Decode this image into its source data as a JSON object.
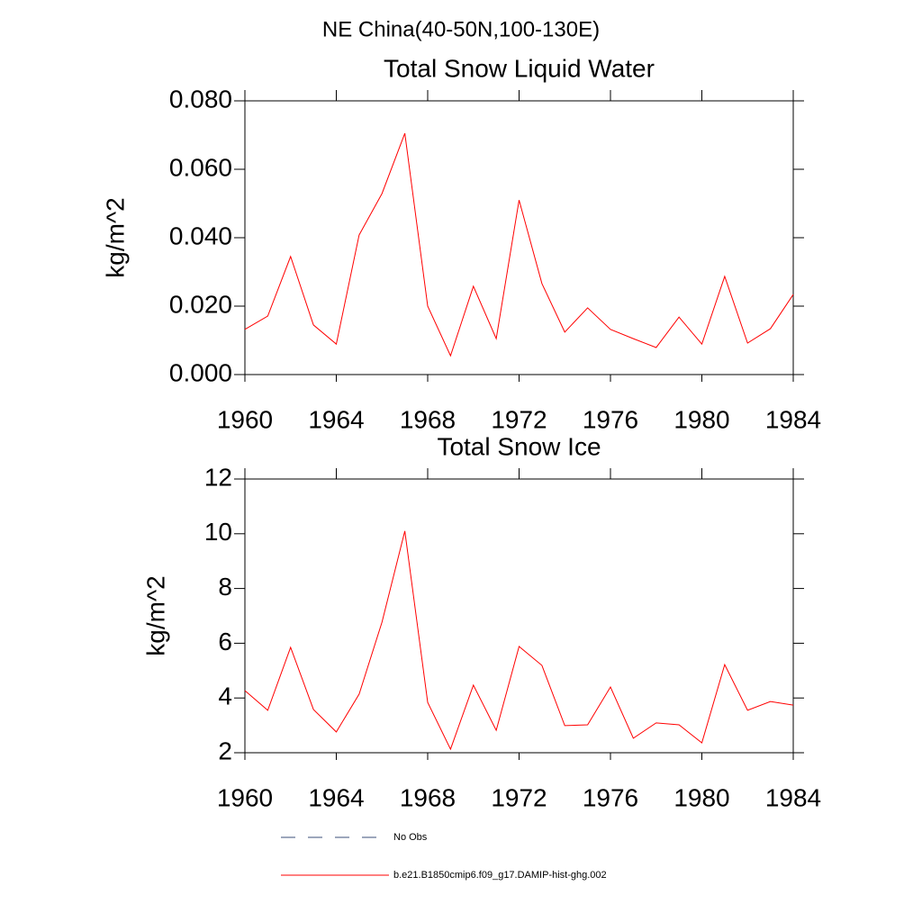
{
  "title": "NE China(40-50N,100-130E)",
  "legend": [
    {
      "name": "No Obs",
      "color": "#3b4f7a",
      "dash": true
    },
    {
      "name": "b.e21.B1850cmip6.f09_g17.DAMIP-hist-ghg.002",
      "color": "#ff0000",
      "dash": false
    }
  ],
  "chart_data": [
    {
      "type": "line",
      "title": "Total Snow Liquid Water",
      "ylabel": "kg/m^2",
      "x": [
        1960,
        1961,
        1962,
        1963,
        1964,
        1965,
        1966,
        1967,
        1968,
        1969,
        1970,
        1971,
        1972,
        1973,
        1974,
        1975,
        1976,
        1977,
        1978,
        1979,
        1980,
        1981,
        1982,
        1983,
        1984
      ],
      "series": [
        {
          "color": "#ff0000",
          "values": [
            0.0132,
            0.0171,
            0.0345,
            0.0145,
            0.0089,
            0.0408,
            0.0529,
            0.0705,
            0.02,
            0.0055,
            0.0258,
            0.0105,
            0.051,
            0.0266,
            0.0124,
            0.0195,
            0.0132,
            0.0105,
            0.0079,
            0.0168,
            0.0089,
            0.0287,
            0.0092,
            0.0134,
            0.0234
          ]
        }
      ],
      "xlim": [
        1960,
        1984
      ],
      "xticks": [
        1960,
        1964,
        1968,
        1972,
        1976,
        1980,
        1984
      ],
      "ylim": [
        0,
        0.08
      ],
      "yticks": [
        {
          "value": 0,
          "label": "0.000"
        },
        {
          "value": 0.02,
          "label": "0.020"
        },
        {
          "value": 0.04,
          "label": "0.040"
        },
        {
          "value": 0.06,
          "label": "0.060"
        },
        {
          "value": 0.08,
          "label": "0.080"
        }
      ]
    },
    {
      "type": "line",
      "title": "Total Snow Ice",
      "ylabel": "kg/m^2",
      "x": [
        1960,
        1961,
        1962,
        1963,
        1964,
        1965,
        1966,
        1967,
        1968,
        1969,
        1970,
        1971,
        1972,
        1973,
        1974,
        1975,
        1976,
        1977,
        1978,
        1979,
        1980,
        1981,
        1982,
        1983,
        1984
      ],
      "series": [
        {
          "color": "#ff0000",
          "values": [
            4.27,
            3.55,
            5.85,
            3.58,
            2.76,
            4.14,
            6.77,
            10.1,
            3.84,
            2.13,
            4.47,
            2.82,
            5.88,
            5.19,
            2.99,
            3.02,
            4.4,
            2.53,
            3.09,
            3.02,
            2.36,
            5.22,
            3.55,
            3.87,
            3.74
          ]
        }
      ],
      "xlim": [
        1960,
        1984
      ],
      "xticks": [
        1960,
        1964,
        1968,
        1972,
        1976,
        1980,
        1984
      ],
      "ylim": [
        2,
        12
      ],
      "yticks": [
        2,
        4,
        6,
        8,
        10,
        12
      ]
    }
  ]
}
